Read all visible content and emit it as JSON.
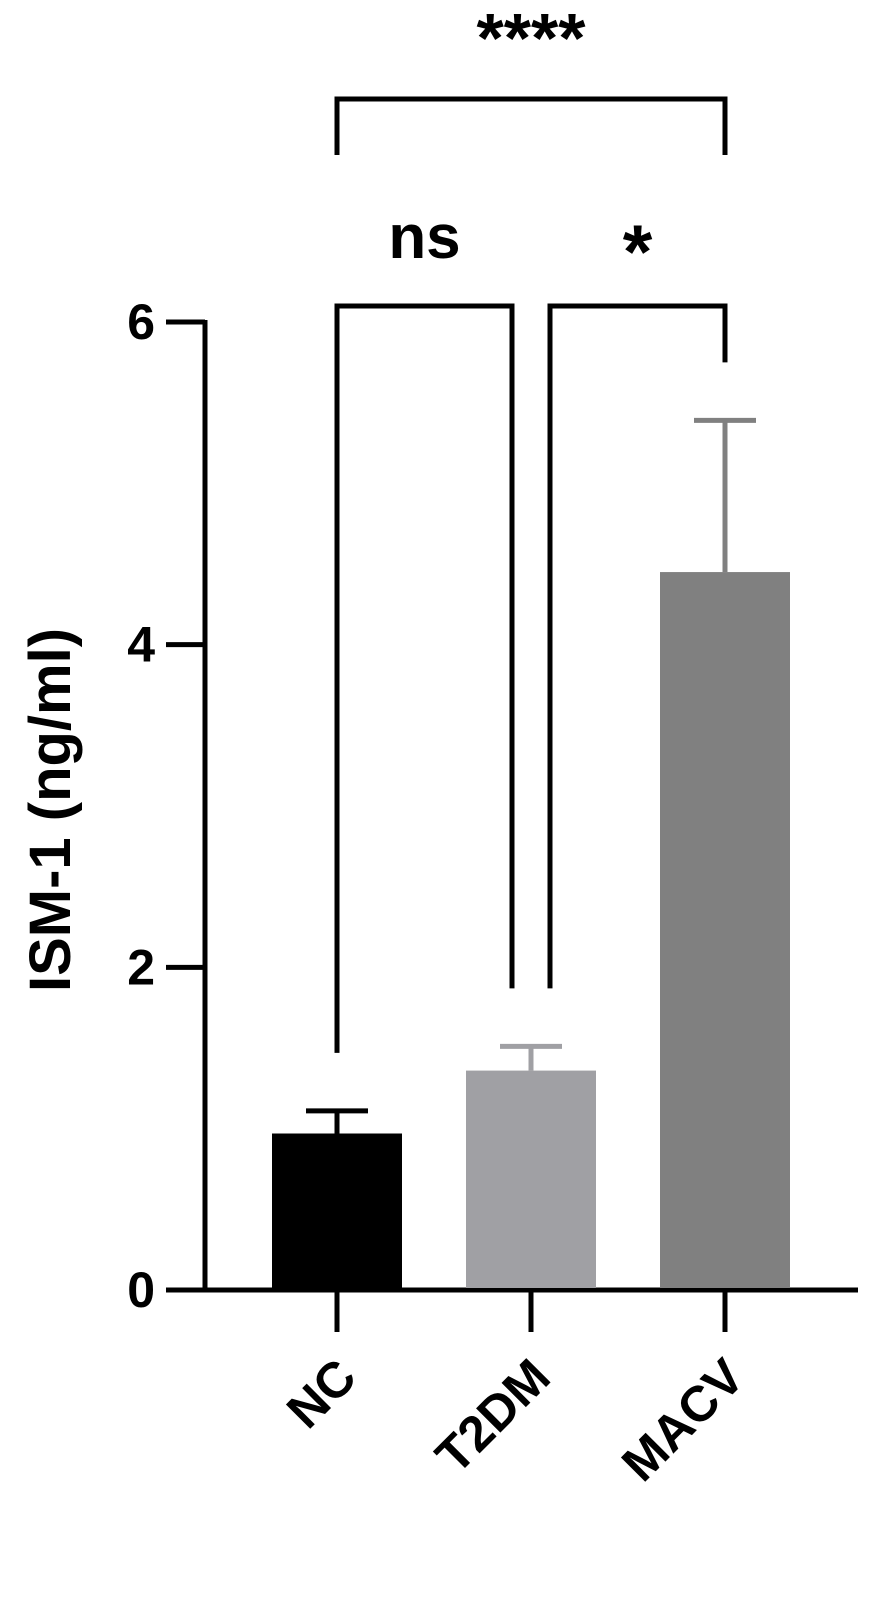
{
  "chart_data": {
    "type": "bar",
    "y_label": "ISM-1 (ng/ml)",
    "categories": [
      "NC",
      "T2DM",
      "MACV"
    ],
    "values": [
      0.97,
      1.36,
      4.45
    ],
    "errors": [
      0.14,
      0.15,
      0.94
    ],
    "colors": [
      "#000000",
      "#a0a0a4",
      "#808080"
    ],
    "ylim": [
      0,
      6
    ],
    "yticks": [
      0,
      2,
      4,
      6
    ],
    "comparisons": [
      {
        "pair": [
          "NC",
          "MACV"
        ],
        "label": "****"
      },
      {
        "pair": [
          "NC",
          "T2DM"
        ],
        "label": "ns"
      },
      {
        "pair": [
          "T2DM",
          "MACV"
        ],
        "label": "*"
      }
    ]
  }
}
